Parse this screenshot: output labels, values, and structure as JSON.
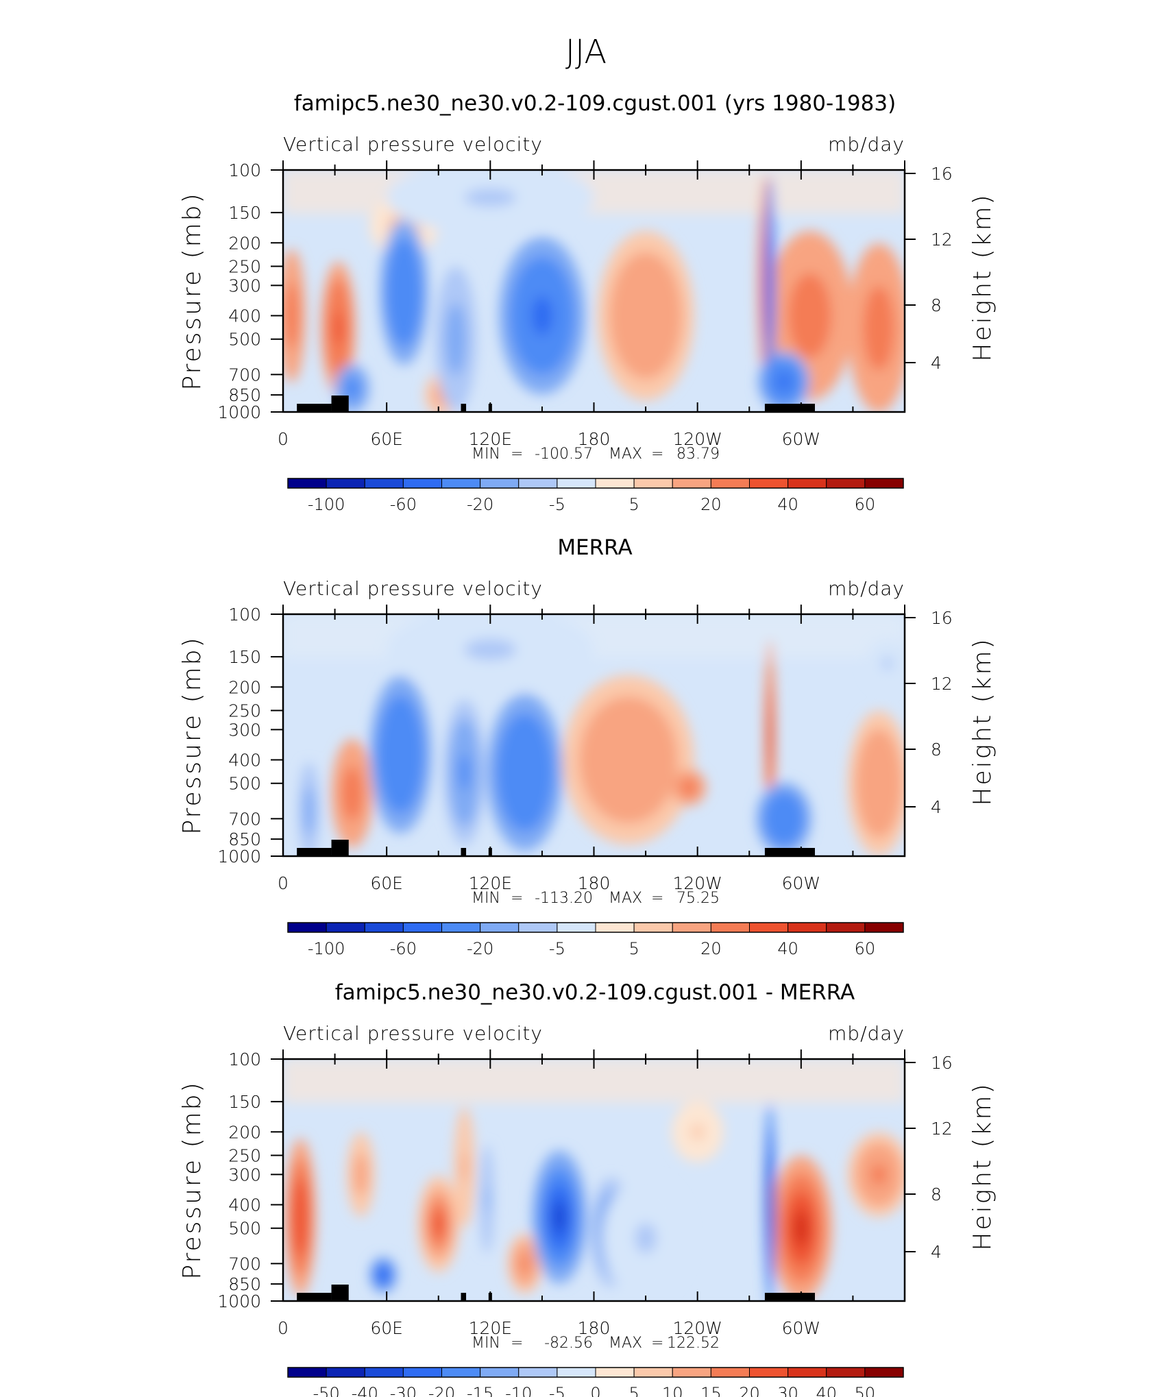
{
  "figure": {
    "title": "JJA"
  },
  "chart_data": [
    {
      "type": "heatmap",
      "title": "famipc5.ne30_ne30.v0.2-109.cgust.001 (yrs 1980-1983)",
      "left_label": "Vertical pressure velocity",
      "right_label": "mb/day",
      "ylabel": "Pressure (mb)",
      "ylabel_right": "Height (km)",
      "x_ticks": [
        "0",
        "60E",
        "120E",
        "180",
        "120W",
        "60W"
      ],
      "x_range": [
        0,
        360
      ],
      "y_ticks": [
        "100",
        "150",
        "200",
        "250",
        "300",
        "400",
        "500",
        "700",
        "850",
        "1000"
      ],
      "y_range": [
        1000,
        100
      ],
      "y_scale": "log",
      "y2_ticks": [
        "16",
        "12",
        "8",
        "4"
      ],
      "stats": {
        "min_label": "MIN",
        "min": "-100.57",
        "max_label": "MAX",
        "max": "83.79"
      },
      "colorbar_labels": [
        "-100",
        "-60",
        "-20",
        "-5",
        "5",
        "20",
        "40",
        "60"
      ],
      "colorbar_colors": [
        "#00008b",
        "#0b24b4",
        "#1a4ad8",
        "#2f6cf2",
        "#4d8bf5",
        "#7faaf4",
        "#aec8f7",
        "#d6e6fa",
        "#fde6d3",
        "#fbc9ab",
        "#f8a481",
        "#f47c55",
        "#ee5330",
        "#d8331b",
        "#b31b10",
        "#870000"
      ],
      "fields": {
        "red_regions": [
          {
            "lon": 5,
            "p": 400,
            "rx": 8,
            "ry": 0.55,
            "v": 25
          },
          {
            "lon": 32,
            "p": 450,
            "rx": 10,
            "ry": 0.55,
            "v": 35
          },
          {
            "lon": 70,
            "p": 170,
            "rx": 20,
            "ry": 0.25,
            "v": 8
          },
          {
            "lon": 92,
            "p": 850,
            "rx": 10,
            "ry": 0.18,
            "v": 15
          },
          {
            "lon": 210,
            "p": 400,
            "rx": 28,
            "ry": 0.7,
            "v": 20
          },
          {
            "lon": 305,
            "p": 400,
            "rx": 25,
            "ry": 0.7,
            "v": 28
          },
          {
            "lon": 345,
            "p": 450,
            "rx": 18,
            "ry": 0.7,
            "v": 30
          },
          {
            "lon": 280,
            "p": 300,
            "rx": 5,
            "ry": 0.9,
            "v": 40
          }
        ],
        "blue_regions": [
          {
            "lon": 70,
            "p": 320,
            "rx": 14,
            "ry": 0.6,
            "v": -35
          },
          {
            "lon": 100,
            "p": 500,
            "rx": 12,
            "ry": 0.6,
            "v": -15
          },
          {
            "lon": 150,
            "p": 400,
            "rx": 25,
            "ry": 0.65,
            "v": -40
          },
          {
            "lon": 40,
            "p": 800,
            "rx": 10,
            "ry": 0.2,
            "v": -30
          },
          {
            "lon": 290,
            "p": 750,
            "rx": 15,
            "ry": 0.25,
            "v": -40
          },
          {
            "lon": 282,
            "p": 300,
            "rx": 3,
            "ry": 0.9,
            "v": -55
          },
          {
            "lon": 120,
            "p": 130,
            "rx": 60,
            "ry": 0.3,
            "v": -5
          }
        ]
      }
    },
    {
      "type": "heatmap",
      "title": "MERRA",
      "left_label": "Vertical pressure velocity",
      "right_label": "mb/day",
      "ylabel": "Pressure (mb)",
      "ylabel_right": "Height (km)",
      "x_ticks": [
        "0",
        "60E",
        "120E",
        "180",
        "120W",
        "60W"
      ],
      "x_range": [
        0,
        360
      ],
      "y_ticks": [
        "100",
        "150",
        "200",
        "250",
        "300",
        "400",
        "500",
        "700",
        "850",
        "1000"
      ],
      "y_range": [
        1000,
        100
      ],
      "y_scale": "log",
      "y2_ticks": [
        "16",
        "12",
        "8",
        "4"
      ],
      "stats": {
        "min_label": "MIN",
        "min": "-113.20",
        "max_label": "MAX",
        "max": "75.25"
      },
      "colorbar_labels": [
        "-100",
        "-60",
        "-20",
        "-5",
        "5",
        "20",
        "40",
        "60"
      ],
      "colorbar_colors": [
        "#00008b",
        "#0b24b4",
        "#1a4ad8",
        "#2f6cf2",
        "#4d8bf5",
        "#7faaf4",
        "#aec8f7",
        "#d6e6fa",
        "#fde6d3",
        "#fbc9ab",
        "#f8a481",
        "#f47c55",
        "#ee5330",
        "#d8331b",
        "#b31b10",
        "#870000"
      ],
      "fields": {
        "red_regions": [
          {
            "lon": 40,
            "p": 550,
            "rx": 12,
            "ry": 0.45,
            "v": 25
          },
          {
            "lon": 200,
            "p": 400,
            "rx": 38,
            "ry": 0.7,
            "v": 18
          },
          {
            "lon": 235,
            "p": 520,
            "rx": 10,
            "ry": 0.15,
            "v": 30
          },
          {
            "lon": 345,
            "p": 500,
            "rx": 18,
            "ry": 0.6,
            "v": 18
          },
          {
            "lon": 282,
            "p": 320,
            "rx": 3,
            "ry": 0.8,
            "v": 45
          }
        ],
        "blue_regions": [
          {
            "lon": 68,
            "p": 380,
            "rx": 18,
            "ry": 0.65,
            "v": -35
          },
          {
            "lon": 140,
            "p": 450,
            "rx": 22,
            "ry": 0.65,
            "v": -38
          },
          {
            "lon": 105,
            "p": 450,
            "rx": 12,
            "ry": 0.6,
            "v": -20
          },
          {
            "lon": 290,
            "p": 700,
            "rx": 16,
            "ry": 0.3,
            "v": -35
          },
          {
            "lon": 15,
            "p": 650,
            "rx": 6,
            "ry": 0.4,
            "v": -15
          },
          {
            "lon": 120,
            "p": 140,
            "rx": 60,
            "ry": 0.35,
            "v": -5
          },
          {
            "lon": 350,
            "p": 160,
            "rx": 12,
            "ry": 0.2,
            "v": -6
          }
        ]
      }
    },
    {
      "type": "heatmap",
      "title": "famipc5.ne30_ne30.v0.2-109.cgust.001 - MERRA",
      "left_label": "Vertical pressure velocity",
      "right_label": "mb/day",
      "ylabel": "Pressure (mb)",
      "ylabel_right": "Height (km)",
      "x_ticks": [
        "0",
        "60E",
        "120E",
        "180",
        "120W",
        "60W"
      ],
      "x_range": [
        0,
        360
      ],
      "y_ticks": [
        "100",
        "150",
        "200",
        "250",
        "300",
        "400",
        "500",
        "700",
        "850",
        "1000"
      ],
      "y_range": [
        1000,
        100
      ],
      "y_scale": "log",
      "y2_ticks": [
        "16",
        "12",
        "8",
        "4"
      ],
      "stats": {
        "min_label": "MIN",
        "min": "-82.56",
        "max_label": "MAX",
        "max": "122.52"
      },
      "colorbar_labels": [
        "-50",
        "-40",
        "-30",
        "-20",
        "-15",
        "-10",
        "-5",
        "0",
        "5",
        "10",
        "15",
        "20",
        "30",
        "40",
        "50"
      ],
      "colorbar_colors": [
        "#00008b",
        "#0b24b4",
        "#1a4ad8",
        "#2f6cf2",
        "#4d8bf5",
        "#7faaf4",
        "#aec8f7",
        "#d6e6fa",
        "#fde6d3",
        "#fbc9ab",
        "#f8a481",
        "#f47c55",
        "#ee5330",
        "#d8331b",
        "#b31b10",
        "#870000"
      ],
      "fields": {
        "red_regions": [
          {
            "lon": 10,
            "p": 450,
            "rx": 9,
            "ry": 0.65,
            "v": 28
          },
          {
            "lon": 45,
            "p": 300,
            "rx": 8,
            "ry": 0.35,
            "v": 15
          },
          {
            "lon": 90,
            "p": 480,
            "rx": 12,
            "ry": 0.4,
            "v": 22
          },
          {
            "lon": 105,
            "p": 280,
            "rx": 6,
            "ry": 0.5,
            "v": 12
          },
          {
            "lon": 140,
            "p": 700,
            "rx": 10,
            "ry": 0.25,
            "v": 18
          },
          {
            "lon": 300,
            "p": 500,
            "rx": 18,
            "ry": 0.6,
            "v": 32
          },
          {
            "lon": 345,
            "p": 300,
            "rx": 18,
            "ry": 0.35,
            "v": 18
          },
          {
            "lon": 240,
            "p": 200,
            "rx": 15,
            "ry": 0.25,
            "v": 6
          }
        ],
        "blue_regions": [
          {
            "lon": 160,
            "p": 450,
            "rx": 16,
            "ry": 0.55,
            "v": -30
          },
          {
            "lon": 190,
            "p": 520,
            "rx": 12,
            "ry": 0.45,
            "v": -18
          },
          {
            "lon": 58,
            "p": 780,
            "rx": 8,
            "ry": 0.15,
            "v": -25
          },
          {
            "lon": 282,
            "p": 400,
            "rx": 3,
            "ry": 0.85,
            "v": -40
          },
          {
            "lon": 118,
            "p": 380,
            "rx": 4,
            "ry": 0.45,
            "v": -12
          },
          {
            "lon": 210,
            "p": 550,
            "rx": 25,
            "ry": 0.5,
            "v": -6
          }
        ]
      }
    }
  ]
}
